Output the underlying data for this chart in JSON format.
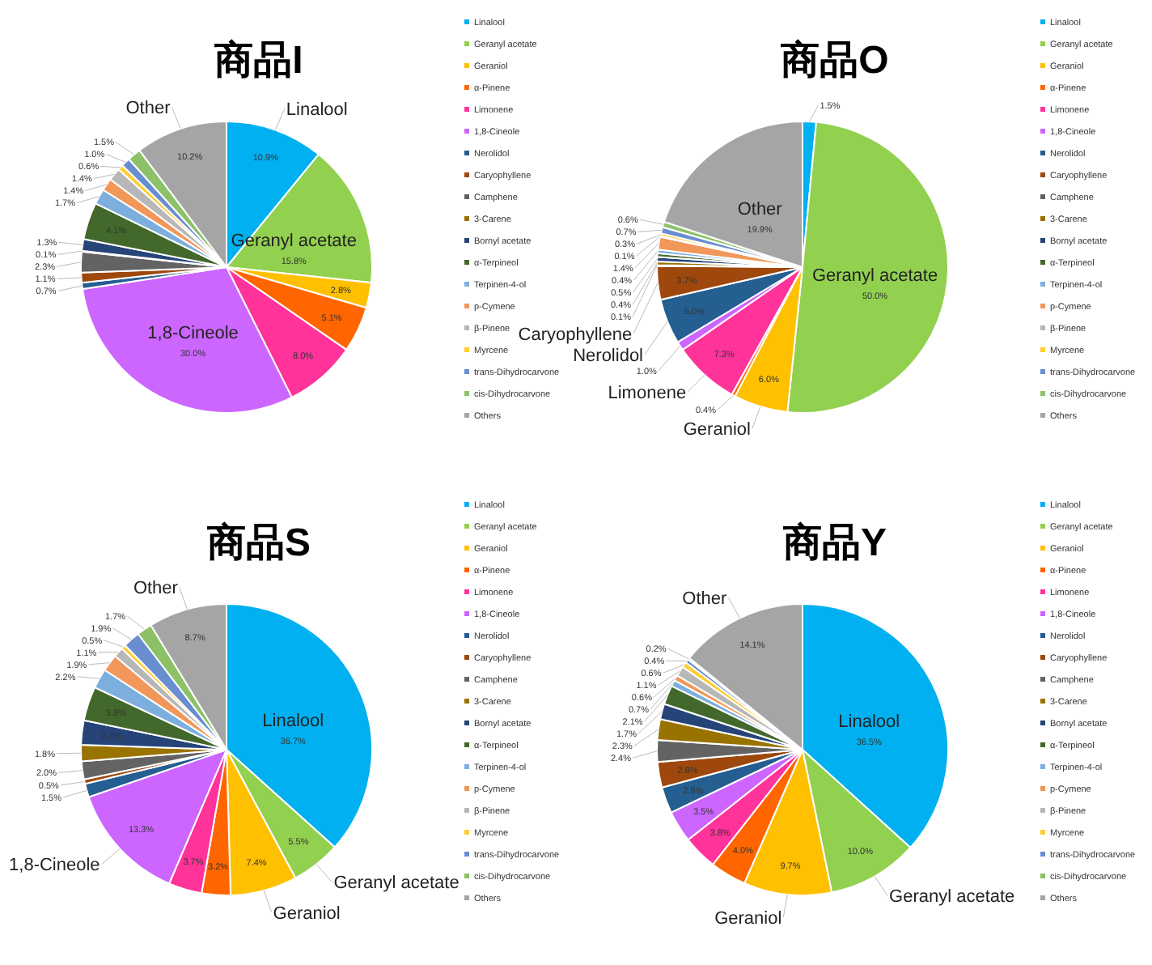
{
  "chart_data": [
    {
      "type": "pie",
      "title": "商品I",
      "legend": "right",
      "value_labels": [
        "10.9%",
        "15.8%",
        "2.8%",
        "5.1%",
        "8.0%",
        "30.0%",
        "0.7%",
        "1.1%",
        "2.3%",
        "0.1%",
        "1.3%",
        "4.1%",
        "1.7%",
        "1.4%",
        "1.4%",
        "0.6%",
        "1.0%",
        "1.5%",
        "10.2%"
      ],
      "categories": [
        "Linalool",
        "Geranyl acetate",
        "Geraniol",
        "α-Pinene",
        "Limonene",
        "1,8-Cineole",
        "Nerolidol",
        "Caryophyllene",
        "Camphene",
        "3-Carene",
        "Bornyl acetate",
        "α-Terpineol",
        "Terpinen-4-ol",
        "p-Cymene",
        "β-Pinene",
        "Myrcene",
        "trans-Dihydrocarvone",
        "cis-Dihydrocarvone",
        "Others"
      ],
      "values": [
        10.9,
        15.8,
        2.8,
        5.1,
        8.0,
        30.0,
        0.7,
        1.1,
        2.3,
        0.1,
        1.3,
        4.1,
        1.7,
        1.4,
        1.4,
        0.6,
        1.0,
        1.5,
        10.2
      ],
      "colors": [
        "#00b0f0",
        "#92d050",
        "#ffc000",
        "#ff6600",
        "#ff3399",
        "#cc66ff",
        "#255e91",
        "#9e480e",
        "#636363",
        "#997300",
        "#264478",
        "#43682b",
        "#7cafdd",
        "#f1975a",
        "#b7b7b7",
        "#ffcd33",
        "#698ed0",
        "#8cc168",
        "#a5a5a5"
      ],
      "annotations": [
        {
          "text": "Linalool",
          "x": "Linalool"
        },
        {
          "text": "Geranyl acetate",
          "x": "Geranyl acetate"
        },
        {
          "text": "1,8-Cineole",
          "x": "1,8-Cineole"
        },
        {
          "text": "Other",
          "x": "Others"
        }
      ]
    },
    {
      "type": "pie",
      "title": "商品O",
      "legend": "right",
      "categories": [
        "Linalool",
        "Geranyl acetate",
        "Geraniol",
        "α-Pinene",
        "Limonene",
        "1,8-Cineole",
        "Nerolidol",
        "Caryophyllene",
        "Camphene",
        "3-Carene",
        "Bornyl acetate",
        "α-Terpineol",
        "Terpinen-4-ol",
        "p-Cymene",
        "β-Pinene",
        "Myrcene",
        "trans-Dihydrocarvone",
        "cis-Dihydrocarvone",
        "Others"
      ],
      "values": [
        1.5,
        50.0,
        6.0,
        0.4,
        7.3,
        1.0,
        5.0,
        3.7,
        0.1,
        0.4,
        0.5,
        0.4,
        0.4,
        1.4,
        0.1,
        0.3,
        0.7,
        0.6,
        19.9
      ],
      "value_labels": [
        "1.5%",
        "50.0%",
        "6.0%",
        "0.4%",
        "7.3%",
        "1.0%",
        "5.0%",
        "3.7%",
        "0.1%",
        "0.4%",
        "0.5%",
        null,
        "0.4%",
        "1.4%",
        "0.1%",
        "0.3%",
        "0.7%",
        "0.6%",
        "19.9%"
      ],
      "colors": [
        "#00b0f0",
        "#92d050",
        "#ffc000",
        "#ff6600",
        "#ff3399",
        "#cc66ff",
        "#255e91",
        "#9e480e",
        "#636363",
        "#997300",
        "#264478",
        "#43682b",
        "#7cafdd",
        "#f1975a",
        "#b7b7b7",
        "#ffcd33",
        "#698ed0",
        "#8cc168",
        "#a5a5a5"
      ],
      "annotations": [
        {
          "text": "Geranyl acetate",
          "x": "Geranyl acetate"
        },
        {
          "text": "Geraniol",
          "x": "Geraniol"
        },
        {
          "text": "Limonene",
          "x": "Limonene"
        },
        {
          "text": "Nerolidol",
          "x": "Nerolidol"
        },
        {
          "text": "Caryophyllene",
          "x": "Caryophyllene"
        },
        {
          "text": "Other",
          "x": "Others"
        }
      ]
    },
    {
      "type": "pie",
      "title": "商品S",
      "legend": "right",
      "value_labels": [
        "36.7%",
        "5.5%",
        "7.4%",
        "3.2%",
        "3.7%",
        "13.3%",
        "1.5%",
        "0.5%",
        "2.0%",
        "1.8%",
        "2.7%",
        "3.8%",
        "2.2%",
        "1.9%",
        "1.1%",
        "0.5%",
        "1.9%",
        "1.7%",
        "8.7%"
      ],
      "categories": [
        "Linalool",
        "Geranyl acetate",
        "Geraniol",
        "α-Pinene",
        "Limonene",
        "1,8-Cineole",
        "Nerolidol",
        "Caryophyllene",
        "Camphene",
        "3-Carene",
        "Bornyl acetate",
        "α-Terpineol",
        "Terpinen-4-ol",
        "p-Cymene",
        "β-Pinene",
        "Myrcene",
        "trans-Dihydrocarvone",
        "cis-Dihydrocarvone",
        "Others"
      ],
      "values": [
        36.7,
        5.5,
        7.4,
        3.2,
        3.7,
        13.3,
        1.5,
        0.5,
        2.0,
        1.8,
        2.7,
        3.8,
        2.2,
        1.9,
        1.1,
        0.5,
        1.9,
        1.7,
        8.7
      ],
      "colors": [
        "#00b0f0",
        "#92d050",
        "#ffc000",
        "#ff6600",
        "#ff3399",
        "#cc66ff",
        "#255e91",
        "#9e480e",
        "#636363",
        "#997300",
        "#264478",
        "#43682b",
        "#7cafdd",
        "#f1975a",
        "#b7b7b7",
        "#ffcd33",
        "#698ed0",
        "#8cc168",
        "#a5a5a5"
      ],
      "annotations": [
        {
          "text": "Linalool",
          "x": "Linalool"
        },
        {
          "text": "Geranyl acetate",
          "x": "Geranyl acetate"
        },
        {
          "text": "Geraniol",
          "x": "Geraniol"
        },
        {
          "text": "1,8-Cineole",
          "x": "1,8-Cineole"
        },
        {
          "text": "Other",
          "x": "Others"
        }
      ]
    },
    {
      "type": "pie",
      "title": "商品Y",
      "legend": "right",
      "value_labels": [
        "36.5%",
        "10.0%",
        "9.7%",
        "4.0%",
        "3.8%",
        "3.5%",
        "2.9%",
        "2.8%",
        "2.4%",
        "2.3%",
        "1.7%",
        "2.1%",
        "0.7%",
        "0.6%",
        "1.1%",
        "0.6%",
        "0.4%",
        "0.2%",
        "14.1%"
      ],
      "categories": [
        "Linalool",
        "Geranyl acetate",
        "Geraniol",
        "α-Pinene",
        "Limonene",
        "1,8-Cineole",
        "Nerolidol",
        "Caryophyllene",
        "Camphene",
        "3-Carene",
        "Bornyl acetate",
        "α-Terpineol",
        "Terpinen-4-ol",
        "p-Cymene",
        "β-Pinene",
        "Myrcene",
        "trans-Dihydrocarvone",
        "cis-Dihydrocarvone",
        "Others"
      ],
      "values": [
        36.5,
        10.0,
        9.7,
        4.0,
        3.8,
        3.5,
        2.9,
        2.8,
        2.4,
        2.3,
        1.7,
        2.1,
        0.7,
        0.6,
        1.1,
        0.6,
        0.4,
        0.2,
        14.1
      ],
      "colors": [
        "#00b0f0",
        "#92d050",
        "#ffc000",
        "#ff6600",
        "#ff3399",
        "#cc66ff",
        "#255e91",
        "#9e480e",
        "#636363",
        "#997300",
        "#264478",
        "#43682b",
        "#7cafdd",
        "#f1975a",
        "#b7b7b7",
        "#ffcd33",
        "#698ed0",
        "#8cc168",
        "#a5a5a5"
      ],
      "annotations": [
        {
          "text": "Linalool",
          "x": "Linalool"
        },
        {
          "text": "Geranyl acetate",
          "x": "Geranyl acetate"
        },
        {
          "text": "Geraniol",
          "x": "Geraniol"
        },
        {
          "text": "Other",
          "x": "Others"
        }
      ]
    }
  ]
}
